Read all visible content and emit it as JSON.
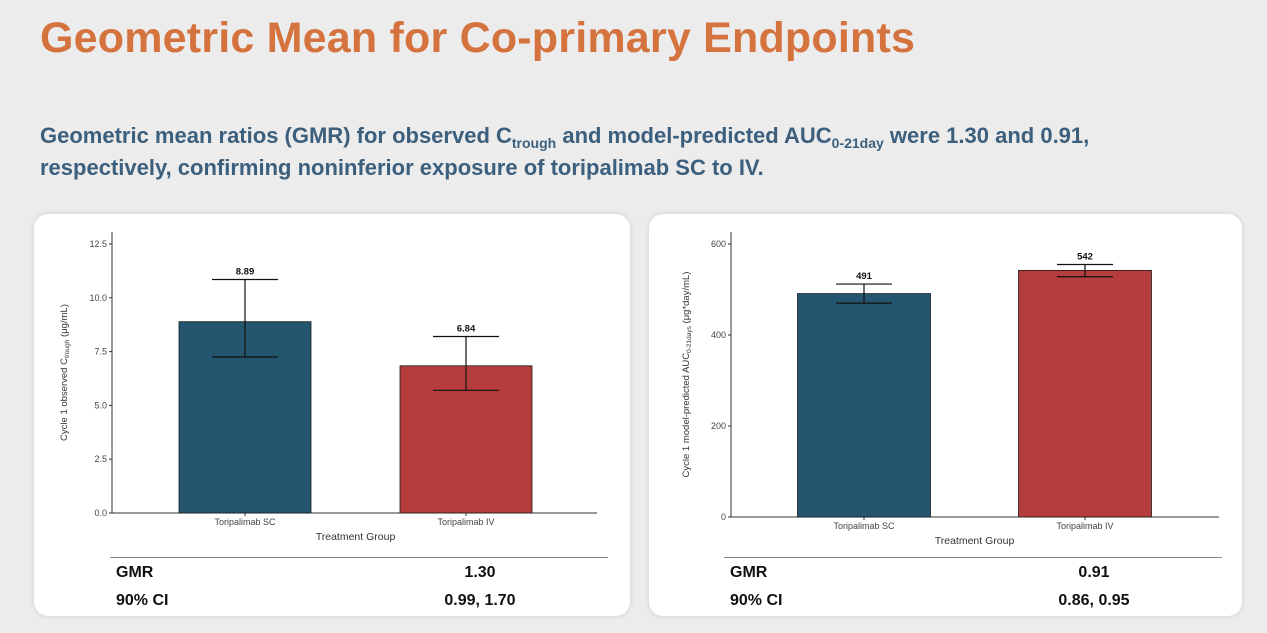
{
  "title": "Geometric Mean for Co-primary Endpoints",
  "subtitle": {
    "part1": "Geometric mean ratios (GMR) for observed C",
    "sub1": "trough",
    "part2": " and model-predicted AUC",
    "sub2": "0-21day",
    "part3": " were 1.30 and 0.91, respectively, confirming noninferior exposure of toripalimab SC to IV."
  },
  "colors": {
    "sc": "#245670",
    "iv": "#b53d3b",
    "title": "#d5733f",
    "subtitle": "#3b5f7d"
  },
  "chart_data": [
    {
      "type": "bar",
      "categories": [
        "Toripalimab SC",
        "Toripalimab IV"
      ],
      "values": [
        8.89,
        6.84
      ],
      "error_low": [
        7.25,
        5.7
      ],
      "error_high": [
        10.85,
        8.2
      ],
      "data_labels": [
        "8.89",
        "6.84"
      ],
      "xlabel": "Treatment Group",
      "ylabel_main": "Cycle 1 observed C",
      "ylabel_sub": "trough",
      "ylabel_tail": " (μg/mL)",
      "ylim": [
        0,
        12.5
      ],
      "yticks": [
        "0.0",
        "2.5",
        "5.0",
        "7.5",
        "10.0",
        "12.5"
      ],
      "ytick_values": [
        0,
        2.5,
        5,
        7.5,
        10,
        12.5
      ],
      "stats": [
        {
          "label": "GMR",
          "value": "1.30"
        },
        {
          "label": "90% CI",
          "value": "0.99, 1.70"
        }
      ]
    },
    {
      "type": "bar",
      "categories": [
        "Toripalimab SC",
        "Toripalimab IV"
      ],
      "values": [
        491,
        542
      ],
      "error_low": [
        470,
        528
      ],
      "error_high": [
        512,
        555
      ],
      "data_labels": [
        "491",
        "542"
      ],
      "xlabel": "Treatment Group",
      "ylabel_main": "Cycle 1 model-predicted AUC",
      "ylabel_sub": "0-21days",
      "ylabel_tail": " (μg*day/mL)",
      "ylim": [
        0,
        600
      ],
      "yticks": [
        "0",
        "200",
        "400",
        "600"
      ],
      "ytick_values": [
        0,
        200,
        400,
        600
      ],
      "stats": [
        {
          "label": "GMR",
          "value": "0.91"
        },
        {
          "label": "90% CI",
          "value": "0.86, 0.95"
        }
      ]
    }
  ]
}
